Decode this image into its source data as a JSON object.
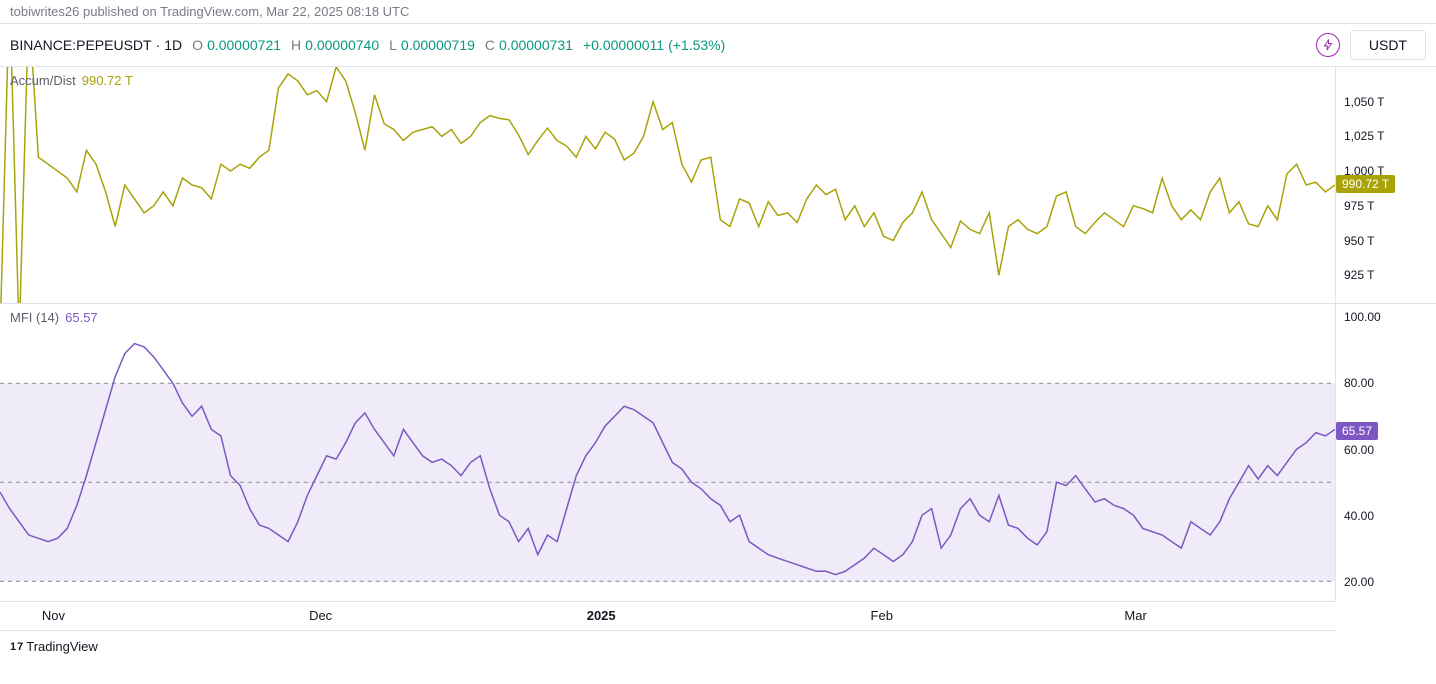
{
  "meta": {
    "publisher": "tobiwrites26",
    "published_text": "tobiwrites26 published on TradingView.com, Mar 22, 2025 08:18 UTC"
  },
  "header": {
    "symbol": "BINANCE:PEPEUSDT",
    "interval": "1D",
    "O": "0.00000721",
    "H": "0.00000740",
    "L": "0.00000719",
    "C": "0.00000731",
    "change_abs": "+0.00000011",
    "change_pct": "(+1.53%)",
    "quote_currency": "USDT",
    "ohlc_color": "#089981"
  },
  "colors": {
    "accum_line": "#a9a30a",
    "accum_tag_bg": "#a9a30a",
    "mfi_line": "#7e57c2",
    "mfi_band_fill": "#7e57c2",
    "mfi_tag_bg": "#7e57c2",
    "grid": "#e0e3eb",
    "text_muted": "#787b86",
    "flash_icon": "#9c27b0"
  },
  "accum": {
    "title": "Accum/Dist",
    "value_label": "990.72 T",
    "current": 990.72,
    "y_ticks": [
      {
        "v": 1050,
        "label": "1,050 T"
      },
      {
        "v": 1025,
        "label": "1,025 T"
      },
      {
        "v": 1000,
        "label": "1,000 T"
      },
      {
        "v": 975,
        "label": "975 T"
      },
      {
        "v": 950,
        "label": "950 T"
      },
      {
        "v": 925,
        "label": "925 T"
      }
    ],
    "ylim": [
      905,
      1075
    ],
    "tag_label": "990.72 T",
    "data": [
      880,
      1130,
      880,
      1120,
      1010,
      1005,
      1000,
      995,
      985,
      1015,
      1005,
      985,
      960,
      990,
      980,
      970,
      975,
      985,
      975,
      995,
      990,
      988,
      980,
      1005,
      1000,
      1005,
      1002,
      1010,
      1015,
      1060,
      1070,
      1065,
      1055,
      1058,
      1050,
      1075,
      1065,
      1042,
      1015,
      1055,
      1034,
      1030,
      1022,
      1028,
      1030,
      1032,
      1025,
      1030,
      1020,
      1025,
      1035,
      1040,
      1038,
      1037,
      1026,
      1012,
      1022,
      1031,
      1022,
      1018,
      1010,
      1025,
      1016,
      1028,
      1023,
      1008,
      1013,
      1025,
      1050,
      1030,
      1035,
      1005,
      992,
      1008,
      1010,
      965,
      960,
      980,
      977,
      960,
      978,
      968,
      970,
      963,
      980,
      990,
      983,
      987,
      965,
      975,
      960,
      970,
      953,
      950,
      963,
      970,
      985,
      965,
      955,
      945,
      964,
      958,
      955,
      970,
      925,
      960,
      965,
      958,
      955,
      960,
      982,
      985,
      960,
      955,
      963,
      970,
      965,
      960,
      975,
      973,
      970,
      995,
      975,
      965,
      972,
      965,
      985,
      995,
      970,
      978,
      962,
      960,
      975,
      965,
      998,
      1005,
      990,
      992,
      985,
      990
    ]
  },
  "mfi": {
    "title": "MFI (14)",
    "value_label": "65.57",
    "current": 65.57,
    "y_ticks": [
      {
        "v": 100,
        "label": "100.00"
      },
      {
        "v": 80,
        "label": "80.00"
      },
      {
        "v": 60,
        "label": "60.00"
      },
      {
        "v": 40,
        "label": "40.00"
      },
      {
        "v": 20,
        "label": "20.00"
      }
    ],
    "ylim": [
      14,
      104
    ],
    "band_upper": 80,
    "band_lower": 20,
    "band_mid": 50,
    "tag_label": "65.57",
    "data": [
      47,
      42,
      38,
      34,
      33,
      32,
      33,
      36,
      43,
      52,
      62,
      72,
      82,
      89,
      92,
      91,
      88,
      84,
      80,
      74,
      70,
      73,
      66,
      64,
      52,
      49,
      42,
      37,
      36,
      34,
      32,
      38,
      46,
      52,
      58,
      57,
      62,
      68,
      71,
      66,
      62,
      58,
      66,
      62,
      58,
      56,
      57,
      55,
      52,
      56,
      58,
      48,
      40,
      38,
      32,
      36,
      28,
      34,
      32,
      42,
      52,
      58,
      62,
      67,
      70,
      73,
      72,
      70,
      68,
      62,
      56,
      54,
      50,
      48,
      45,
      43,
      38,
      40,
      32,
      30,
      28,
      27,
      26,
      25,
      24,
      23,
      23,
      22,
      23,
      25,
      27,
      30,
      28,
      26,
      28,
      32,
      40,
      42,
      30,
      34,
      42,
      45,
      40,
      38,
      46,
      37,
      36,
      33,
      31,
      35,
      50,
      49,
      52,
      48,
      44,
      45,
      43,
      42,
      40,
      36,
      35,
      34,
      32,
      30,
      38,
      36,
      34,
      38,
      45,
      50,
      55,
      51,
      55,
      52,
      56,
      60,
      62,
      65,
      64,
      66
    ]
  },
  "xaxis": {
    "labels": [
      {
        "pos": 0.04,
        "text": "Nov"
      },
      {
        "pos": 0.24,
        "text": "Dec"
      },
      {
        "pos": 0.45,
        "text": "2025"
      },
      {
        "pos": 0.66,
        "text": "Feb"
      },
      {
        "pos": 0.85,
        "text": "Mar"
      }
    ]
  },
  "footer": {
    "brand": "TradingView"
  }
}
